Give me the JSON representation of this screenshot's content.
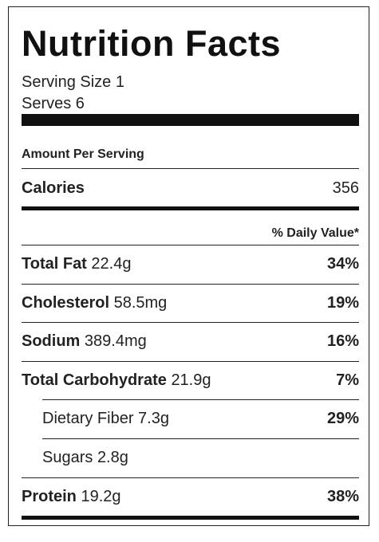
{
  "title": "Nutrition Facts",
  "serving_size": "Serving Size 1",
  "serves": "Serves 6",
  "amount_per_serving": "Amount Per Serving",
  "calories": {
    "label": "Calories",
    "value": "356"
  },
  "daily_value_header": "% Daily Value*",
  "nutrients": [
    {
      "label": "Total Fat",
      "amount": "22.4g",
      "dv": "34%"
    },
    {
      "label": "Cholesterol",
      "amount": "58.5mg",
      "dv": "19%"
    },
    {
      "label": "Sodium",
      "amount": "389.4mg",
      "dv": "16%"
    },
    {
      "label": "Total Carbohydrate",
      "amount": "21.9g",
      "dv": "7%"
    },
    {
      "label": "Dietary Fiber",
      "amount": "7.3g",
      "dv": "29%"
    },
    {
      "label": "Sugars",
      "amount": "2.8g",
      "dv": ""
    },
    {
      "label": "Protein",
      "amount": "19.2g",
      "dv": "38%"
    }
  ],
  "colors": {
    "text": "#222222",
    "bars": "#111111",
    "background": "#ffffff"
  }
}
